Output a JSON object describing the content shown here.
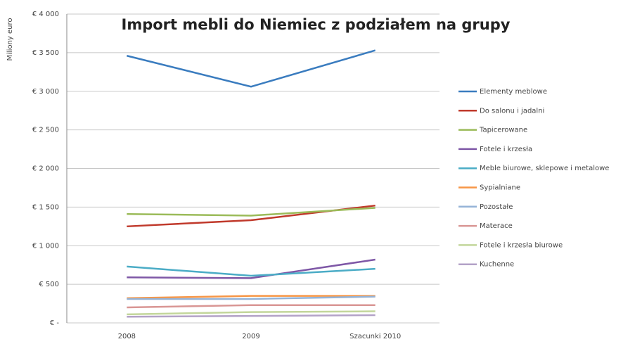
{
  "chart_data": {
    "type": "line",
    "title": "Import mebli do Niemiec z podziałem na grupy",
    "y_label": "Miliony euro",
    "categories": [
      "2008",
      "2009",
      "Szacunki 2010"
    ],
    "ylim": [
      0,
      4000
    ],
    "yticks": [
      {
        "value": 0,
        "label": "€ -"
      },
      {
        "value": 500,
        "label": "€ 500"
      },
      {
        "value": 1000,
        "label": "€ 1 000"
      },
      {
        "value": 1500,
        "label": "€ 1 500"
      },
      {
        "value": 2000,
        "label": "€ 2 000"
      },
      {
        "value": 2500,
        "label": "€ 2 500"
      },
      {
        "value": 3000,
        "label": "€ 3 000"
      },
      {
        "value": 3500,
        "label": "€ 3 500"
      },
      {
        "value": 4000,
        "label": "€ 4 000"
      }
    ],
    "grid": true,
    "series": [
      {
        "name": "Elementy meblowe",
        "color": "#3a7cbf",
        "values": [
          3460,
          3060,
          3530
        ]
      },
      {
        "name": "Do salonu i jadalni",
        "color": "#c0392b",
        "values": [
          1250,
          1330,
          1520
        ]
      },
      {
        "name": "Tapicerowane",
        "color": "#9bbb59",
        "values": [
          1410,
          1390,
          1490
        ]
      },
      {
        "name": "Fotele i krzesła",
        "color": "#7e57a6",
        "values": [
          590,
          580,
          820
        ]
      },
      {
        "name": "Meble biurowe, sklepowe i metalowe",
        "color": "#4bacc6",
        "values": [
          730,
          610,
          700
        ]
      },
      {
        "name": "Sypialniane",
        "color": "#f79646",
        "values": [
          320,
          350,
          350
        ]
      },
      {
        "name": "Pozostałe",
        "color": "#95b3d7",
        "values": [
          310,
          310,
          340
        ]
      },
      {
        "name": "Materace",
        "color": "#d99694",
        "values": [
          200,
          230,
          230
        ]
      },
      {
        "name": "Fotele i krzesła biurowe",
        "color": "#c3d69b",
        "values": [
          110,
          140,
          150
        ]
      },
      {
        "name": "Kuchenne",
        "color": "#b3a2c7",
        "values": [
          80,
          90,
          100
        ]
      }
    ]
  }
}
